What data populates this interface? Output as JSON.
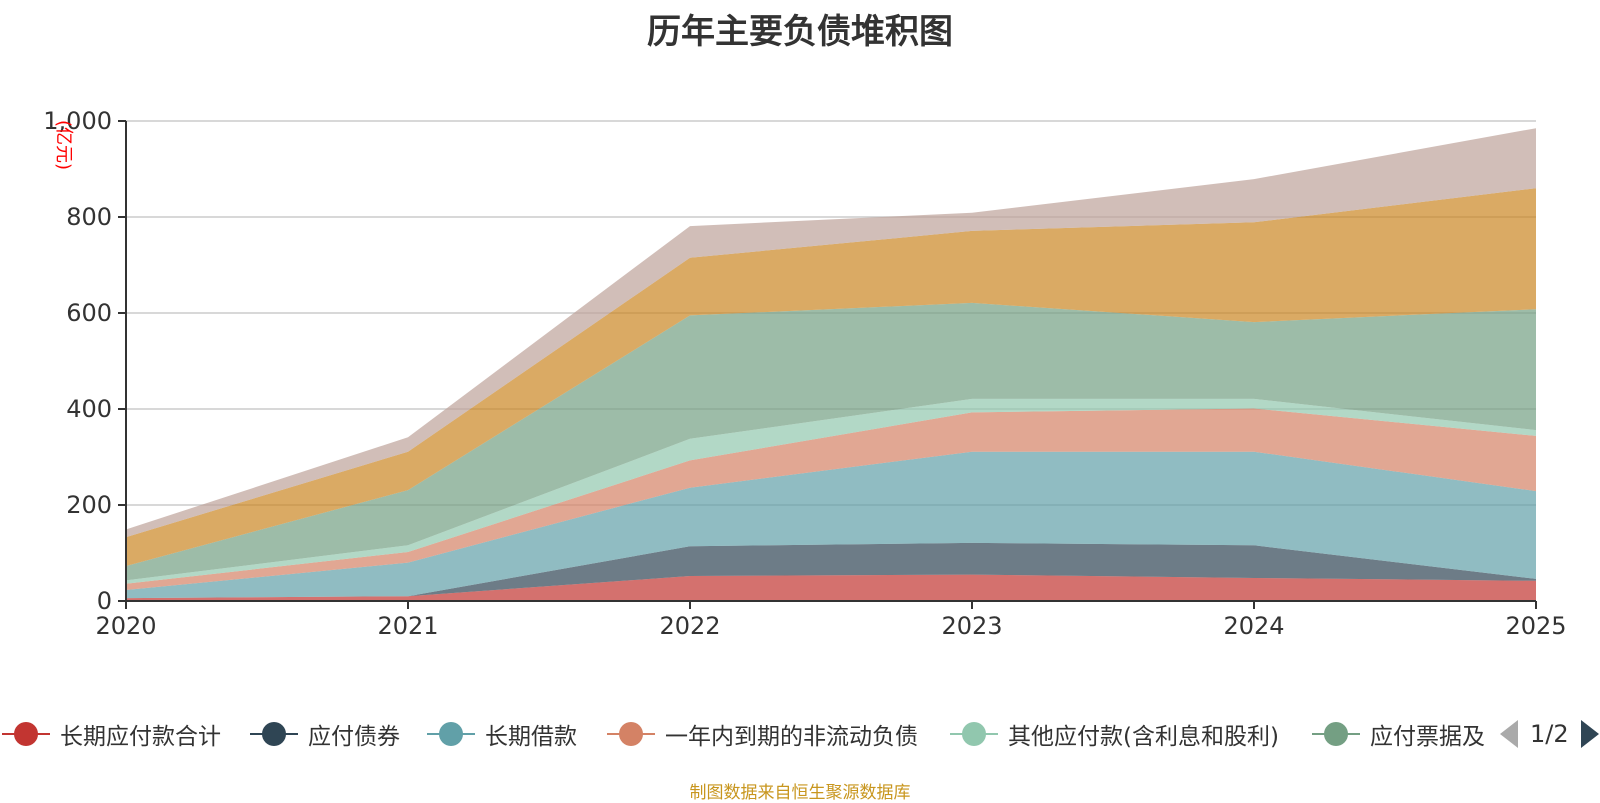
{
  "chart_data": {
    "type": "area",
    "stacked": true,
    "title": "历年主要负债堆积图",
    "unit": "(亿元)",
    "x": [
      "2020",
      "2021",
      "2022",
      "2023",
      "2024",
      "2025"
    ],
    "ylim": [
      0,
      1000
    ],
    "yticks": [
      0,
      200,
      400,
      600,
      800,
      1000
    ],
    "ytick_labels": [
      "0",
      "200",
      "400",
      "600",
      "800",
      "1,000"
    ],
    "grid": true,
    "series": [
      {
        "name": "长期应付款合计",
        "values": [
          6,
          10,
          52,
          55,
          48,
          42
        ],
        "color": "#c23531"
      },
      {
        "name": "应付债券",
        "values": [
          0,
          0,
          62,
          66,
          68,
          4
        ],
        "color": "#2f4554"
      },
      {
        "name": "长期借款",
        "values": [
          17,
          70,
          122,
          190,
          195,
          183
        ],
        "color": "#61a0a8"
      },
      {
        "name": "一年内到期的非流动负债",
        "values": [
          13,
          22,
          57,
          82,
          90,
          115
        ],
        "color": "#d48265"
      },
      {
        "name": "其他应付款(含利息和股利)",
        "values": [
          7,
          14,
          45,
          28,
          20,
          12
        ],
        "color": "#91c7ae"
      },
      {
        "name": "应付票据及应付账款",
        "values": [
          30,
          115,
          257,
          200,
          160,
          252
        ],
        "color": "#749f83"
      },
      {
        "name": "",
        "values": [
          60,
          80,
          120,
          150,
          208,
          252
        ],
        "color": "#ca8622"
      },
      {
        "name": "",
        "values": [
          16,
          30,
          66,
          38,
          90,
          125
        ],
        "color": "#bda29a"
      }
    ]
  },
  "legend": {
    "page_text": "1/2",
    "items": [
      {
        "label": "长期应付款合计",
        "color": "#c23531"
      },
      {
        "label": "应付债券",
        "color": "#2f4554"
      },
      {
        "label": "长期借款",
        "color": "#61a0a8"
      },
      {
        "label": "一年内到期的非流动负债",
        "color": "#d48265"
      },
      {
        "label": "其他应付款(含利息和股利)",
        "color": "#91c7ae"
      },
      {
        "label": "应付票据及应付账款",
        "color": "#749f83"
      }
    ]
  },
  "footer": {
    "source": "制图数据来自恒生聚源数据库"
  }
}
